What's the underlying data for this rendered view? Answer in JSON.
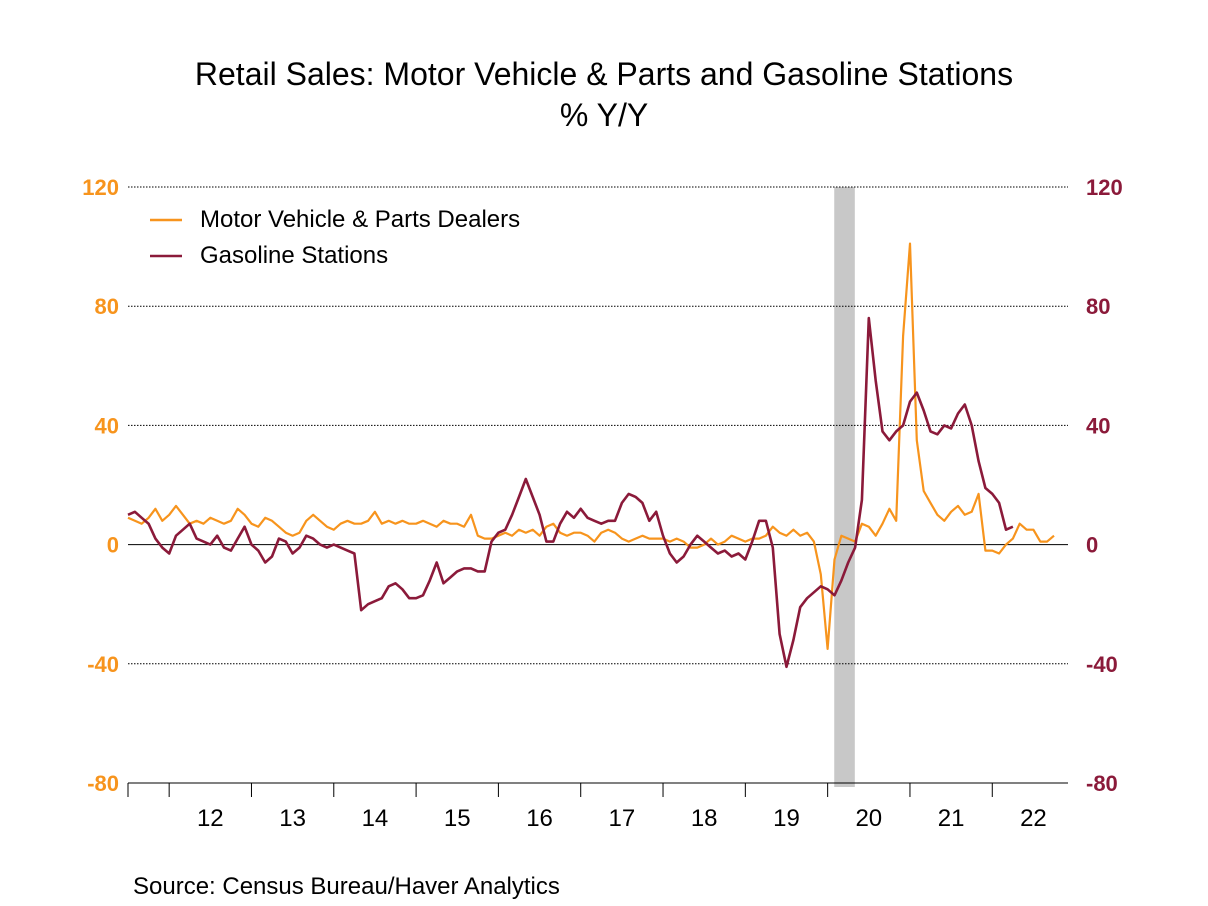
{
  "chart_data": {
    "type": "line",
    "title": "Retail Sales: Motor Vehicle & Parts and Gasoline Stations",
    "subtitle": "% Y/Y",
    "source": "Source:  Census Bureau/Haver Analytics",
    "x_range": [
      2011.5,
      2022.92
    ],
    "ylim": [
      -80,
      120
    ],
    "yticks": [
      -80,
      -40,
      0,
      40,
      80,
      120
    ],
    "ytick_labels": [
      "-80",
      "-40",
      "0",
      "40",
      "80",
      "120"
    ],
    "xtick_labels": [
      "12",
      "13",
      "14",
      "15",
      "16",
      "17",
      "18",
      "19",
      "20",
      "21",
      "22"
    ],
    "recession": [
      2020.08,
      2020.33
    ],
    "colors": {
      "left_axis": "#F7941D",
      "right_axis": "#8B1A3A",
      "motor": "#F7941D",
      "gas": "#8B1A3A",
      "recession": "#C8C8C8"
    },
    "series": [
      {
        "name": "Motor Vehicle & Parts Dealers",
        "x0": 2011.5,
        "step": 0.0833333,
        "values": [
          9,
          8,
          7,
          9,
          12,
          8,
          10,
          13,
          10,
          7,
          8,
          7,
          9,
          8,
          7,
          8,
          12,
          10,
          7,
          6,
          9,
          8,
          6,
          4,
          3,
          4,
          8,
          10,
          8,
          6,
          5,
          7,
          8,
          7,
          7,
          8,
          11,
          7,
          8,
          7,
          8,
          7,
          7,
          8,
          7,
          6,
          8,
          7,
          7,
          6,
          10,
          3,
          2,
          2,
          3,
          4,
          3,
          5,
          4,
          5,
          3,
          6,
          7,
          4,
          3,
          4,
          4,
          3,
          1,
          4,
          5,
          4,
          2,
          1,
          2,
          3,
          2,
          2,
          2,
          1,
          2,
          1,
          -1,
          -1,
          0,
          2,
          0,
          1,
          3,
          2,
          1,
          2,
          2,
          3,
          6,
          4,
          3,
          5,
          3,
          4,
          1,
          -10,
          -35,
          -5,
          3,
          2,
          1,
          7,
          6,
          3,
          7,
          12,
          8,
          70,
          101,
          35,
          18,
          14,
          10,
          8,
          11,
          13,
          10,
          11,
          17,
          -2,
          -2,
          -3,
          0,
          2,
          7,
          5,
          5,
          1,
          1,
          3
        ]
      },
      {
        "name": "Gasoline Stations",
        "x0": 2011.5,
        "step": 0.0833333,
        "values": [
          10,
          11,
          9,
          7,
          2,
          -1,
          -3,
          3,
          5,
          7,
          2,
          1,
          0,
          3,
          -1,
          -2,
          2,
          6,
          0,
          -2,
          -6,
          -4,
          2,
          1,
          -3,
          -1,
          3,
          2,
          0,
          -1,
          0,
          -1,
          -2,
          -3,
          -22,
          -20,
          -19,
          -18,
          -14,
          -13,
          -15,
          -18,
          -18,
          -17,
          -12,
          -6,
          -13,
          -11,
          -9,
          -8,
          -8,
          -9,
          -9,
          1,
          4,
          5,
          10,
          16,
          22,
          16,
          10,
          1,
          1,
          7,
          11,
          9,
          12,
          9,
          8,
          7,
          8,
          8,
          14,
          17,
          16,
          14,
          8,
          11,
          3,
          -3,
          -6,
          -4,
          0,
          3,
          1,
          -1,
          -3,
          -2,
          -4,
          -3,
          -5,
          1,
          8,
          8,
          -1,
          -30,
          -41,
          -32,
          -21,
          -18,
          -16,
          -14,
          -15,
          -17,
          -12,
          -6,
          -1,
          15,
          76,
          55,
          38,
          35,
          38,
          40,
          48,
          51,
          45,
          38,
          37,
          40,
          39,
          44,
          47,
          40,
          28,
          19,
          17,
          14,
          5,
          6
        ]
      }
    ]
  }
}
